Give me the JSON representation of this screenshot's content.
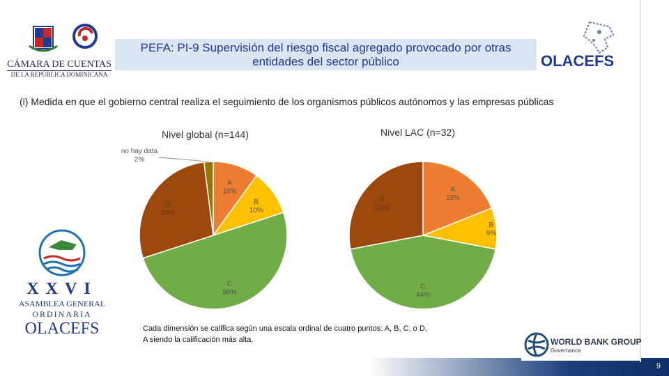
{
  "header": {
    "title": "PEFA: PI-9 Supervisión del riesgo fiscal agregado provocado por otras entidades del sector público",
    "subtitle": "(i) Medida en que el gobierno central realiza el seguimiento de los organismos públicos autónomos y las empresas públicas"
  },
  "logos": {
    "camara_line1": "CÁMARA DE CUENTAS",
    "camara_line2": "DE LA REPÚBLICA DOMINICANA",
    "olacefs": "OLACEFS",
    "asamblea_num": "XXVI",
    "asamblea_line1": "ASAMBLEA GENERAL",
    "asamblea_line2": "ORDINARIA",
    "asamblea_org": "OLACEFS",
    "worldbank_line1": "WORLD BANK GROUP",
    "worldbank_line2": "Governance"
  },
  "note": {
    "line1": "Cada dimensión se califica según una escala ordinal de cuatro puntos: A, B, C, o D,",
    "line2": "A siendo la calificación más alta."
  },
  "page_number": "9",
  "colors": {
    "A": "#ed7d31",
    "B": "#ffc000",
    "C": "#70ad47",
    "D": "#9e480e",
    "no_data": "#997300",
    "title_bg": "#dce6f2",
    "title_text": "#1f3a93"
  },
  "chart_data": [
    {
      "type": "pie",
      "title": "Nivel global (n=144)",
      "categories": [
        "no hay data",
        "A",
        "B",
        "C",
        "D"
      ],
      "values": [
        2,
        10,
        10,
        50,
        28
      ],
      "labels": [
        "2%",
        "10%",
        "10%",
        "50%",
        "28%"
      ]
    },
    {
      "type": "pie",
      "title": "Nivel LAC (n=32)",
      "categories": [
        "A",
        "B",
        "C",
        "D"
      ],
      "values": [
        19,
        9,
        44,
        28
      ],
      "labels": [
        "19%",
        "9%",
        "44%",
        "28%"
      ]
    }
  ]
}
